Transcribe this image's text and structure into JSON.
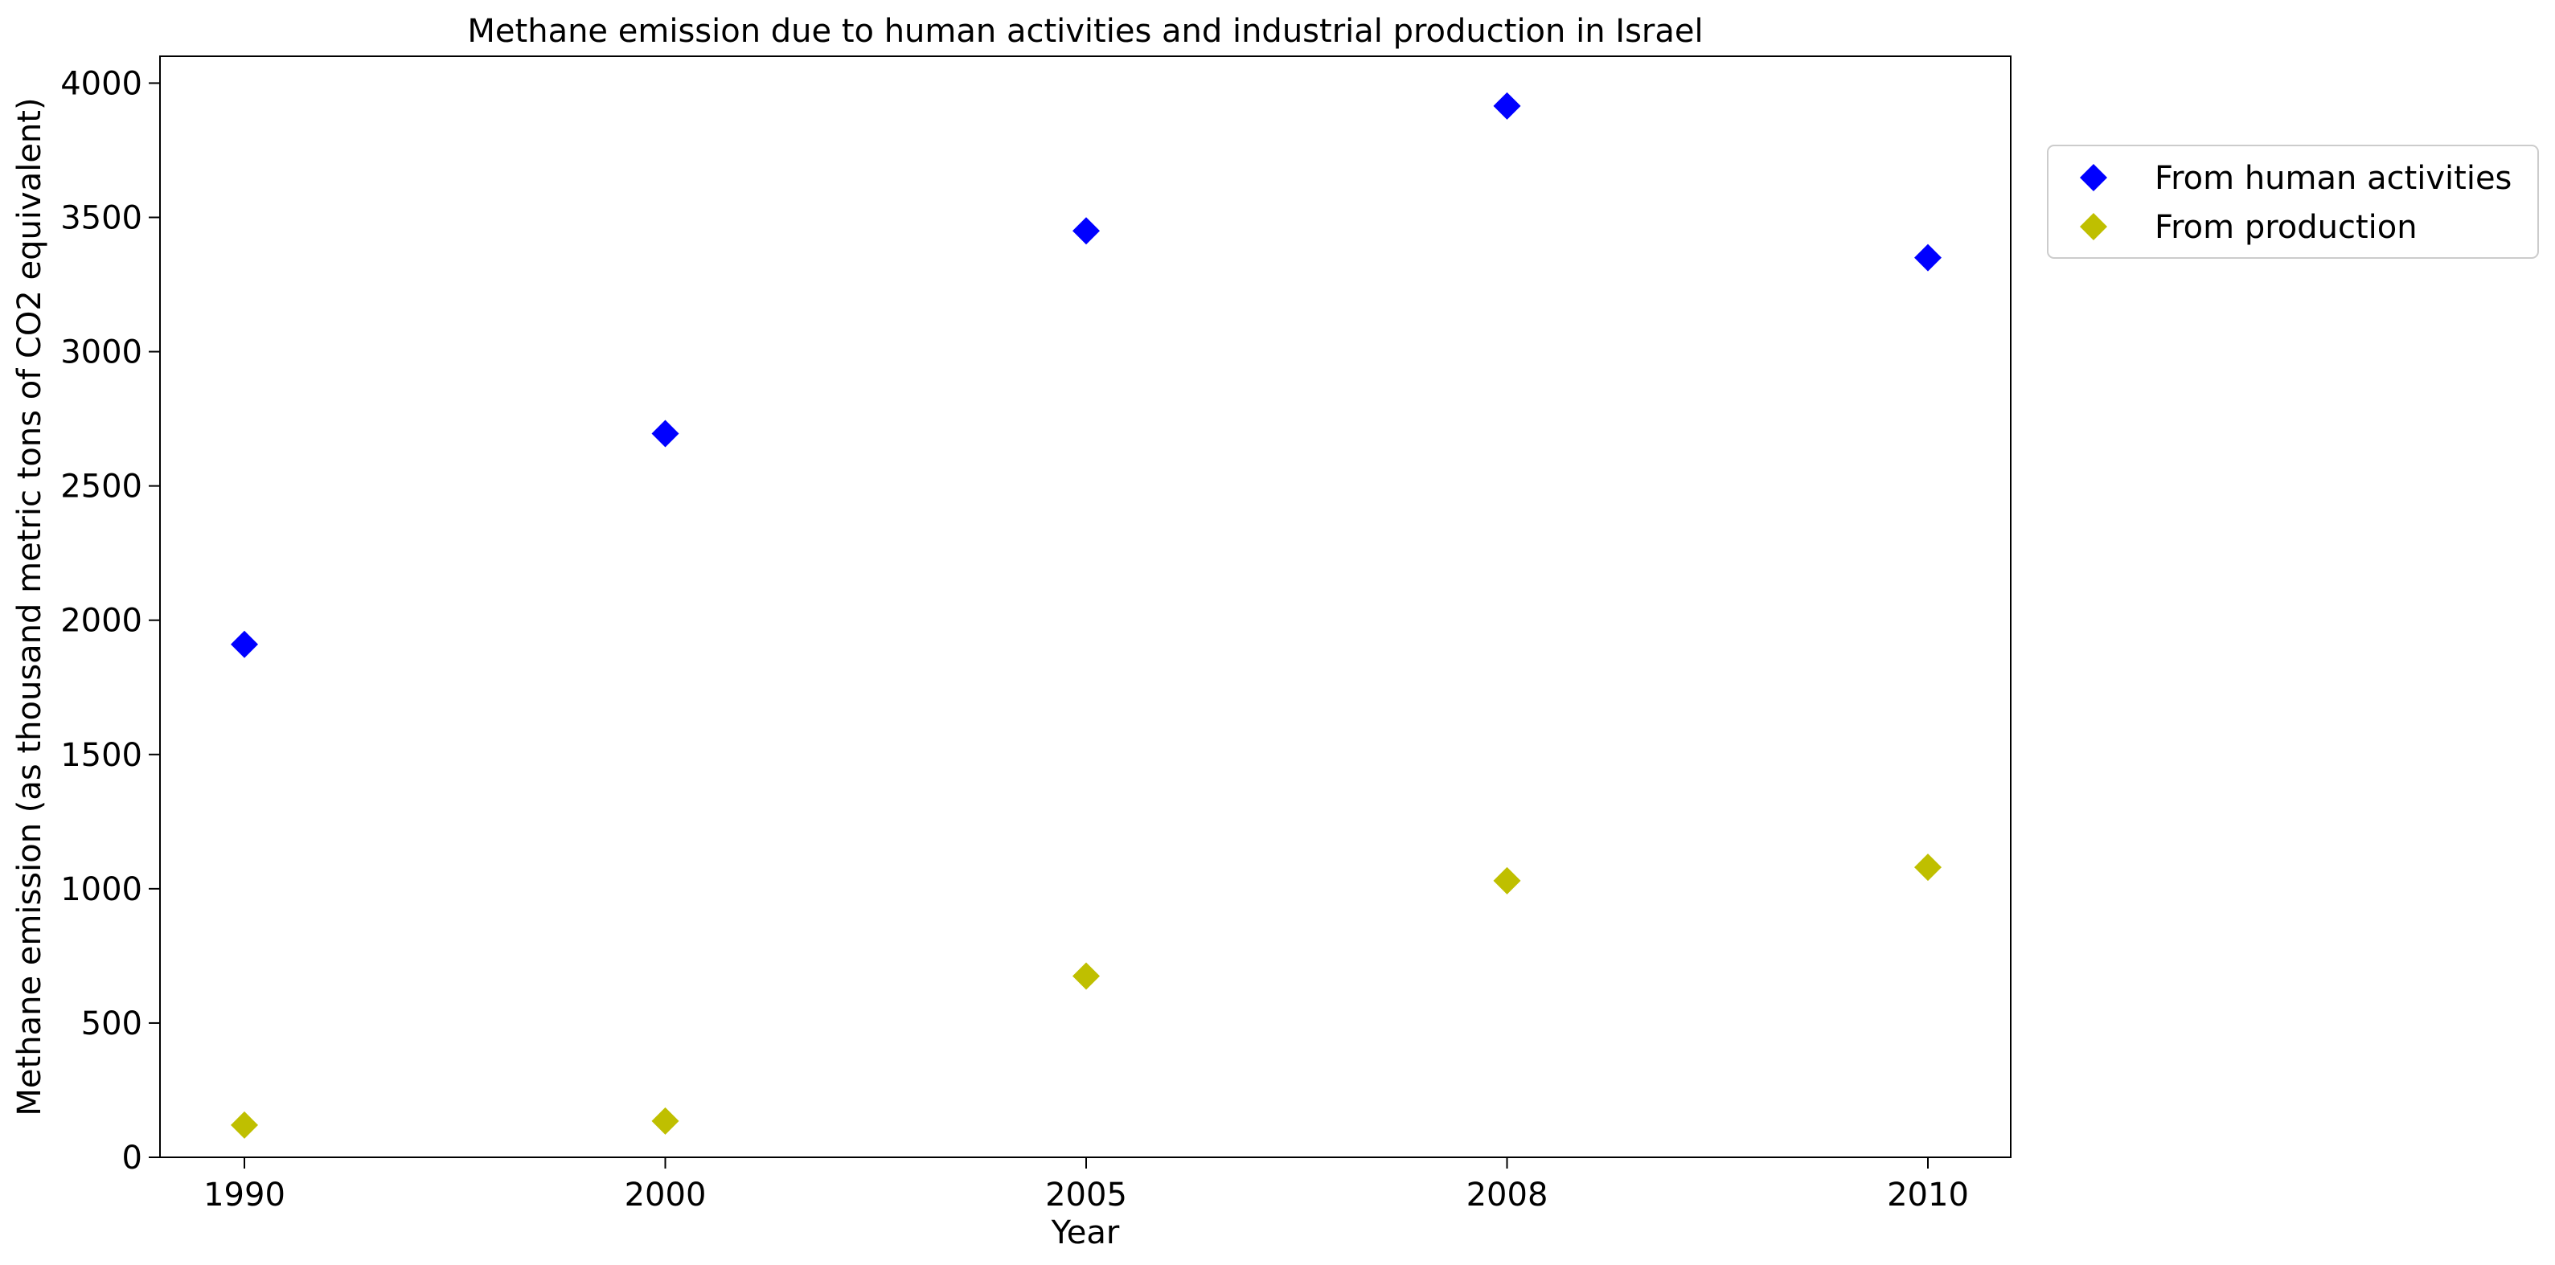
{
  "chart_data": {
    "type": "scatter",
    "title": "Methane emission due to human activities and industrial production in Israel",
    "xlabel": "Year",
    "ylabel": "Methane emission (as thousand metric tons of CO2 equivalent)",
    "categories": [
      "1990",
      "2000",
      "2005",
      "2008",
      "2010"
    ],
    "ylim": [
      0,
      4100
    ],
    "yticks": [
      0,
      500,
      1000,
      1500,
      2000,
      2500,
      3000,
      3500,
      4000
    ],
    "grid": false,
    "legend_position": "outside-top-right",
    "marker": "diamond",
    "series": [
      {
        "name": "From human activities",
        "color": "#0000ff",
        "values": [
          1910,
          2695,
          3450,
          3915,
          3350
        ]
      },
      {
        "name": "From production",
        "color": "#bfbf00",
        "values": [
          120,
          135,
          675,
          1030,
          1080
        ]
      }
    ]
  }
}
